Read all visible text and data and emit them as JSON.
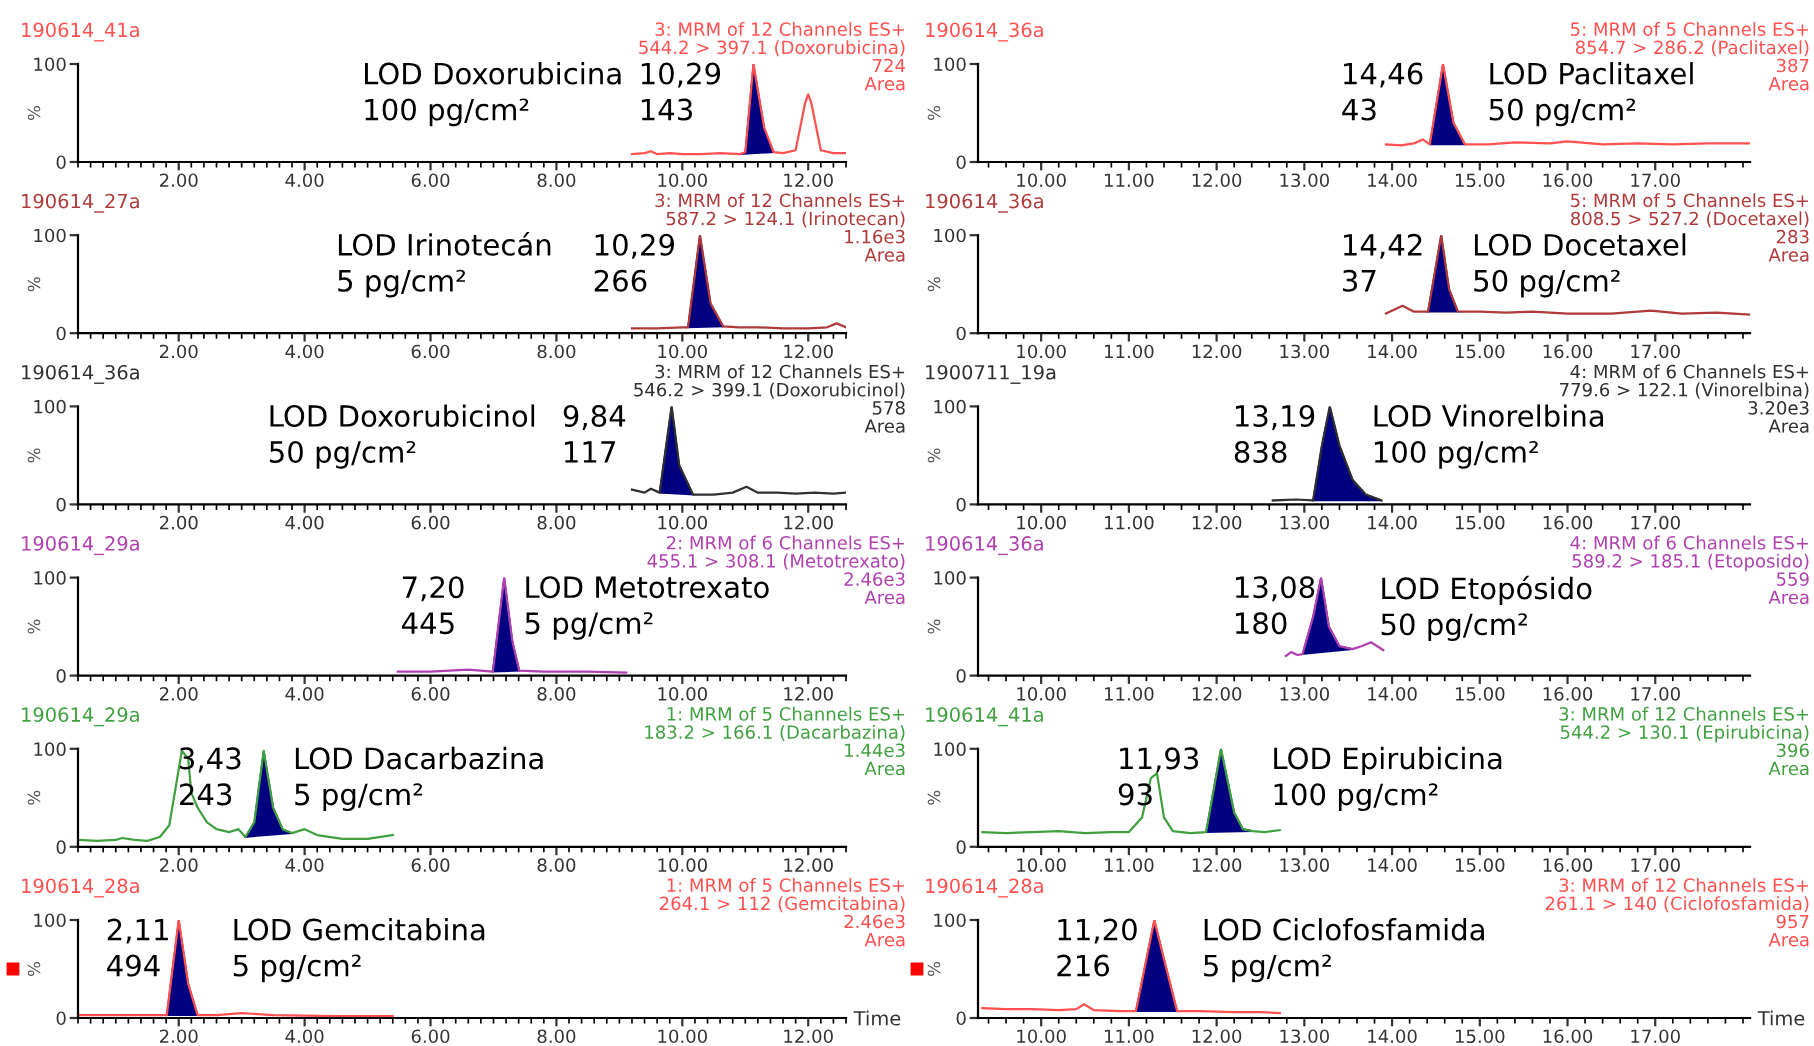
{
  "chart_data": [
    {
      "type": "line",
      "title": "190614_41a",
      "subtitle": "3: MRM of 12 Channels ES+\n544.2 > 397.1 (Doxorubicina)\n724\nArea",
      "ylabel": "%",
      "xlim": [
        0.4,
        12.6
      ],
      "xticks": [
        {
          "value": 2,
          "label": "2.00"
        },
        {
          "value": 4,
          "label": "4.00"
        },
        {
          "value": 6,
          "label": "6.00"
        },
        {
          "value": 8,
          "label": "8.00"
        },
        {
          "value": 10,
          "label": "10.00"
        },
        {
          "value": 12,
          "label": "12.00"
        }
      ],
      "ylim": [
        0,
        100
      ],
      "yticks": [
        0,
        100
      ],
      "series": [
        {
          "type": "line",
          "color": "#ff5050",
          "x": [
            9.2,
            9.4,
            9.5,
            9.6,
            9.8,
            10.0,
            10.3,
            10.6,
            10.92,
            11.0,
            11.13,
            11.3,
            11.45,
            11.6,
            11.8,
            11.95,
            12.0,
            12.05,
            12.2,
            12.4,
            12.6
          ],
          "values": [
            8,
            9,
            11,
            8,
            9,
            8,
            8,
            9,
            8,
            10,
            100,
            35,
            10,
            9,
            12,
            60,
            69,
            60,
            12,
            9,
            9
          ]
        },
        {
          "type": "area",
          "color": "#000080",
          "x": [
            10.92,
            11.0,
            11.13,
            11.3,
            11.45
          ],
          "values": [
            8,
            10,
            100,
            35,
            10
          ]
        }
      ],
      "annotations": [
        "LOD Doxorubicina\n100 pg/cm²",
        "10,29\n143"
      ]
    },
    {
      "type": "line",
      "title": "190614_36a",
      "subtitle": "5: MRM of 5 Channels ES+\n854.7 > 286.2 (Paclitaxel)\n387\nArea",
      "ylabel": "%",
      "xlim": [
        9.28,
        18.08
      ],
      "xticks": [
        {
          "value": 10,
          "label": "10.00"
        },
        {
          "value": 11,
          "label": "11.00"
        },
        {
          "value": 12,
          "label": "12.00"
        },
        {
          "value": 13,
          "label": "13.00"
        },
        {
          "value": 14,
          "label": "14.00"
        },
        {
          "value": 15,
          "label": "15.00"
        },
        {
          "value": 16,
          "label": "16.00"
        },
        {
          "value": 17,
          "label": "17.00"
        }
      ],
      "ylim": [
        0,
        100
      ],
      "yticks": [
        0,
        100
      ],
      "series": [
        {
          "type": "line",
          "color": "#ff5050",
          "x": [
            13.93,
            14.1,
            14.25,
            14.35,
            14.43,
            14.58,
            14.7,
            14.83,
            15.1,
            15.4,
            15.8,
            16.0,
            16.4,
            16.8,
            17.2,
            17.6,
            18.07
          ],
          "values": [
            18,
            17,
            19,
            23,
            18,
            100,
            40,
            18,
            18,
            20,
            19,
            21,
            18,
            19,
            18,
            19,
            19
          ]
        },
        {
          "type": "area",
          "color": "#000080",
          "x": [
            14.43,
            14.58,
            14.7,
            14.83
          ],
          "values": [
            18,
            100,
            40,
            18
          ]
        }
      ],
      "annotations": [
        "LOD Paclitaxel\n50 pg/cm²",
        "14,46\n43"
      ]
    },
    {
      "type": "line",
      "title": "190614_27a",
      "subtitle": "3: MRM of 12 Channels ES+\n587.2 > 124.1 (Irinotecan)\n1.16e3\nArea",
      "ylabel": "%",
      "xlim": [
        0.4,
        12.6
      ],
      "xticks": [
        {
          "value": 2,
          "label": "2.00"
        },
        {
          "value": 4,
          "label": "4.00"
        },
        {
          "value": 6,
          "label": "6.00"
        },
        {
          "value": 8,
          "label": "8.00"
        },
        {
          "value": 10,
          "label": "10.00"
        },
        {
          "value": 12,
          "label": "12.00"
        }
      ],
      "ylim": [
        0,
        100
      ],
      "yticks": [
        0,
        100
      ],
      "series": [
        {
          "type": "line",
          "color": "#b03a3a",
          "x": [
            9.2,
            9.6,
            10.0,
            10.09,
            10.28,
            10.45,
            10.65,
            10.9,
            11.2,
            11.6,
            12.0,
            12.3,
            12.45,
            12.6
          ],
          "values": [
            5,
            5,
            6,
            6,
            100,
            30,
            7,
            6,
            6,
            5,
            5,
            6,
            10,
            6
          ]
        },
        {
          "type": "area",
          "color": "#000080",
          "x": [
            10.09,
            10.28,
            10.45,
            10.65
          ],
          "values": [
            6,
            100,
            30,
            7
          ]
        }
      ],
      "annotations": [
        "LOD Irinotecán\n5 pg/cm²",
        "10,29\n266"
      ]
    },
    {
      "type": "line",
      "title": "190614_36a",
      "subtitle": "5: MRM of 5 Channels ES+\n808.5 > 527.2 (Docetaxel)\n283\nArea",
      "ylabel": "%",
      "xlim": [
        9.28,
        18.08
      ],
      "xticks": [
        {
          "value": 10,
          "label": "10.00"
        },
        {
          "value": 11,
          "label": "11.00"
        },
        {
          "value": 12,
          "label": "12.00"
        },
        {
          "value": 13,
          "label": "13.00"
        },
        {
          "value": 14,
          "label": "14.00"
        },
        {
          "value": 15,
          "label": "15.00"
        },
        {
          "value": 16,
          "label": "16.00"
        },
        {
          "value": 17,
          "label": "17.00"
        }
      ],
      "ylim": [
        0,
        100
      ],
      "yticks": [
        0,
        100
      ],
      "series": [
        {
          "type": "line",
          "color": "#b03a3a",
          "x": [
            13.93,
            14.12,
            14.25,
            14.41,
            14.56,
            14.65,
            14.75,
            15.0,
            15.3,
            15.6,
            16.0,
            16.5,
            16.95,
            17.3,
            17.7,
            18.07
          ],
          "values": [
            20,
            28,
            22,
            22,
            100,
            45,
            22,
            22,
            21,
            22,
            20,
            20,
            23,
            20,
            21,
            19
          ]
        },
        {
          "type": "area",
          "color": "#000080",
          "x": [
            14.41,
            14.56,
            14.65,
            14.75
          ],
          "values": [
            22,
            100,
            45,
            22
          ]
        }
      ],
      "annotations": [
        "LOD Docetaxel\n50 pg/cm²",
        "14,42\n37"
      ]
    },
    {
      "type": "line",
      "title": "190614_36a",
      "subtitle": "3: MRM of 12 Channels ES+\n546.2 > 399.1 (Doxorubicinol)\n578\nArea",
      "ylabel": "%",
      "xlim": [
        0.4,
        12.6
      ],
      "xticks": [
        {
          "value": 2,
          "label": "2.00"
        },
        {
          "value": 4,
          "label": "4.00"
        },
        {
          "value": 6,
          "label": "6.00"
        },
        {
          "value": 8,
          "label": "8.00"
        },
        {
          "value": 10,
          "label": "10.00"
        },
        {
          "value": 12,
          "label": "12.00"
        }
      ],
      "ylim": [
        0,
        100
      ],
      "yticks": [
        0,
        100
      ],
      "series": [
        {
          "type": "line",
          "color": "#303030",
          "x": [
            9.2,
            9.4,
            9.5,
            9.64,
            9.83,
            9.95,
            10.17,
            10.5,
            10.8,
            11.02,
            11.2,
            11.5,
            11.8,
            12.1,
            12.4,
            12.6
          ],
          "values": [
            15,
            12,
            16,
            12,
            100,
            40,
            10,
            10,
            12,
            18,
            12,
            12,
            11,
            12,
            11,
            12
          ]
        },
        {
          "type": "area",
          "color": "#000080",
          "x": [
            9.64,
            9.83,
            9.95,
            10.17
          ],
          "values": [
            12,
            100,
            40,
            10
          ]
        }
      ],
      "annotations": [
        "LOD Doxorubicinol\n50 pg/cm²",
        "9,84\n117"
      ]
    },
    {
      "type": "line",
      "title": "1900711_19a",
      "subtitle": "4: MRM of 6 Channels ES+\n779.6 > 122.1 (Vinorelbina)\n3.20e3\nArea",
      "ylabel": "%",
      "xlim": [
        9.28,
        18.08
      ],
      "xticks": [
        {
          "value": 10,
          "label": "10.00"
        },
        {
          "value": 11,
          "label": "11.00"
        },
        {
          "value": 12,
          "label": "12.00"
        },
        {
          "value": 13,
          "label": "13.00"
        },
        {
          "value": 14,
          "label": "14.00"
        },
        {
          "value": 15,
          "label": "15.00"
        },
        {
          "value": 16,
          "label": "16.00"
        },
        {
          "value": 17,
          "label": "17.00"
        }
      ],
      "ylim": [
        0,
        100
      ],
      "yticks": [
        0,
        100
      ],
      "series": [
        {
          "type": "line",
          "color": "#303030",
          "x": [
            12.64,
            12.9,
            13.1,
            13.2,
            13.29,
            13.4,
            13.55,
            13.7,
            13.88
          ],
          "values": [
            4,
            5,
            4,
            60,
            100,
            60,
            25,
            10,
            4
          ]
        },
        {
          "type": "area",
          "color": "#000080",
          "x": [
            13.1,
            13.2,
            13.29,
            13.4,
            13.55,
            13.7,
            13.88
          ],
          "values": [
            4,
            60,
            100,
            60,
            25,
            10,
            4
          ]
        }
      ],
      "annotations": [
        "LOD Vinorelbina\n100 pg/cm²",
        "13,19\n838"
      ]
    },
    {
      "type": "line",
      "title": "190614_29a",
      "subtitle": "2: MRM of 6 Channels ES+\n455.1 > 308.1 (Metotrexato)\n2.46e3\nArea",
      "ylabel": "%",
      "xlim": [
        0.4,
        12.6
      ],
      "xticks": [
        {
          "value": 2,
          "label": "2.00"
        },
        {
          "value": 4,
          "label": "4.00"
        },
        {
          "value": 6,
          "label": "6.00"
        },
        {
          "value": 8,
          "label": "8.00"
        },
        {
          "value": 10,
          "label": "10.00"
        },
        {
          "value": 12,
          "label": "12.00"
        }
      ],
      "ylim": [
        0,
        100
      ],
      "yticks": [
        0,
        100
      ],
      "series": [
        {
          "type": "line",
          "color": "#b040b0",
          "x": [
            5.48,
            6.0,
            6.6,
            6.99,
            7.17,
            7.3,
            7.41,
            7.8,
            8.5,
            9.11
          ],
          "values": [
            4,
            4,
            6,
            4,
            100,
            35,
            5,
            4,
            4,
            3
          ]
        },
        {
          "type": "area",
          "color": "#000080",
          "x": [
            6.99,
            7.17,
            7.3,
            7.41
          ],
          "values": [
            4,
            100,
            35,
            5
          ]
        }
      ],
      "annotations": [
        "LOD Metotrexato\n5 pg/cm²",
        "7,20\n445"
      ]
    },
    {
      "type": "line",
      "title": "190614_36a",
      "subtitle": "4: MRM of 6 Channels ES+\n589.2 > 185.1 (Etoposido)\n559\nArea",
      "ylabel": "%",
      "xlim": [
        9.28,
        18.08
      ],
      "xticks": [
        {
          "value": 10,
          "label": "10.00"
        },
        {
          "value": 11,
          "label": "11.00"
        },
        {
          "value": 12,
          "label": "12.00"
        },
        {
          "value": 13,
          "label": "13.00"
        },
        {
          "value": 14,
          "label": "14.00"
        },
        {
          "value": 15,
          "label": "15.00"
        },
        {
          "value": 16,
          "label": "16.00"
        },
        {
          "value": 17,
          "label": "17.00"
        }
      ],
      "ylim": [
        0,
        100
      ],
      "yticks": [
        0,
        100
      ],
      "series": [
        {
          "type": "line",
          "color": "#b040b0",
          "x": [
            12.79,
            12.85,
            12.92,
            12.98,
            13.1,
            13.19,
            13.28,
            13.4,
            13.55,
            13.65,
            13.76,
            13.9
          ],
          "values": [
            20,
            24,
            21,
            22,
            60,
            100,
            50,
            30,
            27,
            30,
            34,
            26
          ]
        },
        {
          "type": "area",
          "color": "#000080",
          "x": [
            12.98,
            13.1,
            13.19,
            13.28,
            13.4,
            13.55
          ],
          "values": [
            22,
            60,
            100,
            50,
            30,
            27
          ]
        }
      ],
      "annotations": [
        "LOD Etopósido\n50 pg/cm²",
        "13,08\n180"
      ]
    },
    {
      "type": "line",
      "title": "190614_29a",
      "subtitle": "1: MRM of 5 Channels ES+\n183.2 > 166.1 (Dacarbazina)\n1.44e3\nArea",
      "ylabel": "%",
      "xlim": [
        0.4,
        12.6
      ],
      "xticks": [
        {
          "value": 2,
          "label": "2.00"
        },
        {
          "value": 4,
          "label": "4.00"
        },
        {
          "value": 6,
          "label": "6.00"
        },
        {
          "value": 8,
          "label": "8.00"
        },
        {
          "value": 10,
          "label": "10.00"
        },
        {
          "value": 12,
          "label": "12.00"
        }
      ],
      "ylim": [
        0,
        100
      ],
      "yticks": [
        0,
        100
      ],
      "series": [
        {
          "type": "line",
          "color": "#40a040",
          "x": [
            0.4,
            0.7,
            1.0,
            1.1,
            1.3,
            1.5,
            1.7,
            1.85,
            1.95,
            2.05,
            2.15,
            2.2,
            2.3,
            2.45,
            2.6,
            2.8,
            2.95,
            3.06,
            3.2,
            3.35,
            3.5,
            3.65,
            3.8,
            4.0,
            4.2,
            4.6,
            5.0,
            5.4
          ],
          "values": [
            7,
            6,
            7,
            9,
            7,
            6,
            10,
            22,
            60,
            98,
            90,
            55,
            40,
            25,
            18,
            15,
            18,
            10,
            25,
            98,
            40,
            18,
            14,
            18,
            12,
            8,
            8,
            12
          ]
        },
        {
          "type": "area",
          "color": "#000080",
          "x": [
            3.06,
            3.2,
            3.35,
            3.5,
            3.65,
            3.8
          ],
          "values": [
            10,
            25,
            98,
            40,
            18,
            14
          ]
        }
      ],
      "annotations": [
        "LOD Dacarbazina\n5 pg/cm²",
        "3,43\n243"
      ]
    },
    {
      "type": "line",
      "title": "190614_41a",
      "subtitle": "3: MRM of 12 Channels ES+\n544.2 > 130.1 (Epirubicina)\n396\nArea",
      "ylabel": "%",
      "xlim": [
        9.28,
        18.08
      ],
      "xticks": [
        {
          "value": 10,
          "label": "10.00"
        },
        {
          "value": 11,
          "label": "11.00"
        },
        {
          "value": 12,
          "label": "12.00"
        },
        {
          "value": 13,
          "label": "13.00"
        },
        {
          "value": 14,
          "label": "14.00"
        },
        {
          "value": 15,
          "label": "15.00"
        },
        {
          "value": 16,
          "label": "16.00"
        },
        {
          "value": 17,
          "label": "17.00"
        }
      ],
      "ylim": [
        0,
        100
      ],
      "yticks": [
        0,
        100
      ],
      "series": [
        {
          "type": "line",
          "color": "#40a040",
          "x": [
            9.33,
            9.6,
            9.9,
            10.2,
            10.5,
            10.8,
            11.0,
            11.15,
            11.25,
            11.32,
            11.4,
            11.5,
            11.7,
            11.88,
            12.05,
            12.2,
            12.3,
            12.41,
            12.55,
            12.72
          ],
          "values": [
            15,
            14,
            15,
            16,
            14,
            15,
            15,
            30,
            70,
            75,
            30,
            16,
            14,
            15,
            100,
            35,
            18,
            16,
            15,
            17
          ]
        },
        {
          "type": "area",
          "color": "#000080",
          "x": [
            11.88,
            12.05,
            12.2,
            12.3,
            12.41
          ],
          "values": [
            15,
            100,
            35,
            18,
            16
          ]
        }
      ],
      "annotations": [
        "LOD Epirubicina\n100 pg/cm²",
        "11,93\n93"
      ]
    },
    {
      "type": "line",
      "title": "190614_28a",
      "subtitle": "1: MRM of 5 Channels ES+\n264.1 > 112 (Gemcitabina)\n2.46e3\nArea",
      "ylabel": "%",
      "xlabel": "Time",
      "xlim": [
        0.4,
        12.6
      ],
      "xticks": [
        {
          "value": 2,
          "label": "2.00"
        },
        {
          "value": 4,
          "label": "4.00"
        },
        {
          "value": 6,
          "label": "6.00"
        },
        {
          "value": 8,
          "label": "8.00"
        },
        {
          "value": 10,
          "label": "10.00"
        },
        {
          "value": 12,
          "label": "12.00"
        }
      ],
      "ylim": [
        0,
        100
      ],
      "yticks": [
        0,
        100
      ],
      "series": [
        {
          "type": "line",
          "color": "#ff5050",
          "x": [
            0.4,
            1.0,
            1.5,
            1.81,
            2.0,
            2.15,
            2.3,
            2.6,
            3.0,
            3.5,
            4.5,
            5.4
          ],
          "values": [
            3,
            3,
            3,
            3,
            100,
            35,
            3,
            3,
            5,
            3,
            2,
            2
          ]
        },
        {
          "type": "area",
          "color": "#000080",
          "x": [
            1.81,
            2.0,
            2.15,
            2.3
          ],
          "values": [
            3,
            100,
            35,
            3
          ]
        }
      ],
      "annotations": [
        "LOD Gemcitabina\n5 pg/cm²",
        "2,11\n494"
      ]
    },
    {
      "type": "line",
      "title": "190614_28a",
      "subtitle": "3: MRM of 12 Channels ES+\n261.1 > 140 (Ciclofosfamida)\n957\nArea",
      "ylabel": "%",
      "xlabel": "Time",
      "xlim": [
        9.28,
        18.08
      ],
      "xticks": [
        {
          "value": 10,
          "label": "10.00"
        },
        {
          "value": 11,
          "label": "11.00"
        },
        {
          "value": 12,
          "label": "12.00"
        },
        {
          "value": 13,
          "label": "13.00"
        },
        {
          "value": 14,
          "label": "14.00"
        },
        {
          "value": 15,
          "label": "15.00"
        },
        {
          "value": 16,
          "label": "16.00"
        },
        {
          "value": 17,
          "label": "17.00"
        }
      ],
      "ylim": [
        0,
        100
      ],
      "yticks": [
        0,
        100
      ],
      "series": [
        {
          "type": "line",
          "color": "#ff5050",
          "x": [
            9.33,
            9.6,
            9.9,
            10.2,
            10.4,
            10.49,
            10.6,
            10.9,
            11.08,
            11.29,
            11.4,
            11.55,
            11.8,
            12.2,
            12.5,
            12.72
          ],
          "values": [
            10,
            9,
            9,
            8,
            9,
            14,
            8,
            7,
            7,
            100,
            60,
            7,
            7,
            6,
            6,
            5
          ]
        },
        {
          "type": "area",
          "color": "#000080",
          "x": [
            11.08,
            11.29,
            11.4,
            11.55
          ],
          "values": [
            7,
            100,
            60,
            7
          ]
        }
      ],
      "annotations": [
        "LOD Ciclofosfamida\n5 pg/cm²",
        "11,20\n216"
      ]
    }
  ]
}
